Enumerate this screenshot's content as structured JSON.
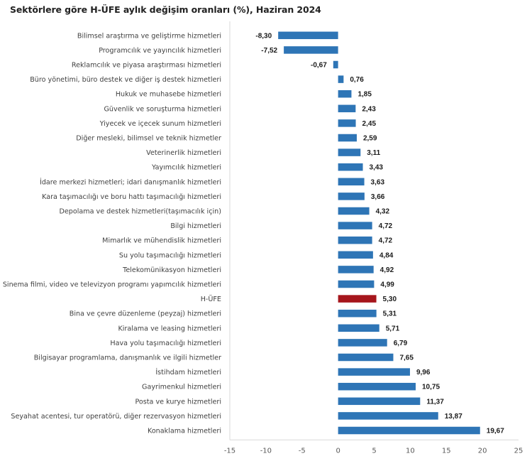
{
  "chart_data": {
    "type": "bar",
    "orientation": "horizontal",
    "title": "Sektörlere göre H-ÜFE aylık değişim oranları (%), Haziran 2024",
    "xlabel": "",
    "ylabel": "",
    "xlim": [
      -15,
      25
    ],
    "xticks": [
      -15,
      -10,
      -5,
      0,
      5,
      10,
      15,
      20,
      25
    ],
    "xtick_labels": [
      "-15",
      "-10",
      "-5",
      "0",
      "5",
      "10",
      "15",
      "20",
      "25"
    ],
    "grid": false,
    "legend": "none",
    "colors": {
      "default": "#2E75B6",
      "highlight": "#A6161C",
      "axis": "#D9D9D9"
    },
    "categories": [
      "Bilimsel araştırma ve geliştirme hizmetleri",
      "Programcılık ve yayıncılık hizmetleri",
      "Reklamcılık ve piyasa araştırması hizmetleri",
      "Büro yönetimi, büro destek ve diğer iş destek hizmetleri",
      "Hukuk ve muhasebe hizmetleri",
      "Güvenlik ve soruşturma hizmetleri",
      "Yiyecek ve içecek sunum hizmetleri",
      "Diğer mesleki, bilimsel ve teknik hizmetler",
      "Veterinerlik hizmetleri",
      "Yayımcılık hizmetleri",
      "İdare merkezi hizmetleri; idari danışmanlık hizmetleri",
      "Kara taşımacılığı ve boru hattı taşımacılığı hizmetleri",
      "Depolama ve destek hizmetleri(taşımacılık için)",
      "Bilgi hizmetleri",
      "Mimarlık ve mühendislik hizmetleri",
      "Su yolu taşımacılığı hizmetleri",
      "Telekomünikasyon hizmetleri",
      "Sinema filmi, video ve televizyon programı yapımcılık hizmetleri",
      "H-ÜFE",
      "Bina ve çevre düzenleme (peyzaj) hizmetleri",
      "Kiralama ve leasing hizmetleri",
      "Hava yolu taşımacılığı hizmetleri",
      "Bilgisayar programlama, danışmanlık ve ilgili hizmetler",
      "İstihdam hizmetleri",
      "Gayrimenkul hizmetleri",
      "Posta ve kurye hizmetleri",
      "Seyahat acentesi, tur operatörü, diğer rezervasyon hizmetleri",
      "Konaklama hizmetleri"
    ],
    "values": [
      -8.3,
      -7.52,
      -0.67,
      0.76,
      1.85,
      2.43,
      2.45,
      2.59,
      3.11,
      3.43,
      3.63,
      3.66,
      4.32,
      4.72,
      4.72,
      4.84,
      4.92,
      4.99,
      5.3,
      5.31,
      5.71,
      6.79,
      7.65,
      9.96,
      10.75,
      11.37,
      13.87,
      19.67
    ],
    "value_labels": [
      "-8,30",
      "-7,52",
      "-0,67",
      "0,76",
      "1,85",
      "2,43",
      "2,45",
      "2,59",
      "3,11",
      "3,43",
      "3,63",
      "3,66",
      "4,32",
      "4,72",
      "4,72",
      "4,84",
      "4,92",
      "4,99",
      "5,30",
      "5,31",
      "5,71",
      "6,79",
      "7,65",
      "9,96",
      "10,75",
      "11,37",
      "13,87",
      "19,67"
    ],
    "highlight_category": "H-ÜFE"
  }
}
